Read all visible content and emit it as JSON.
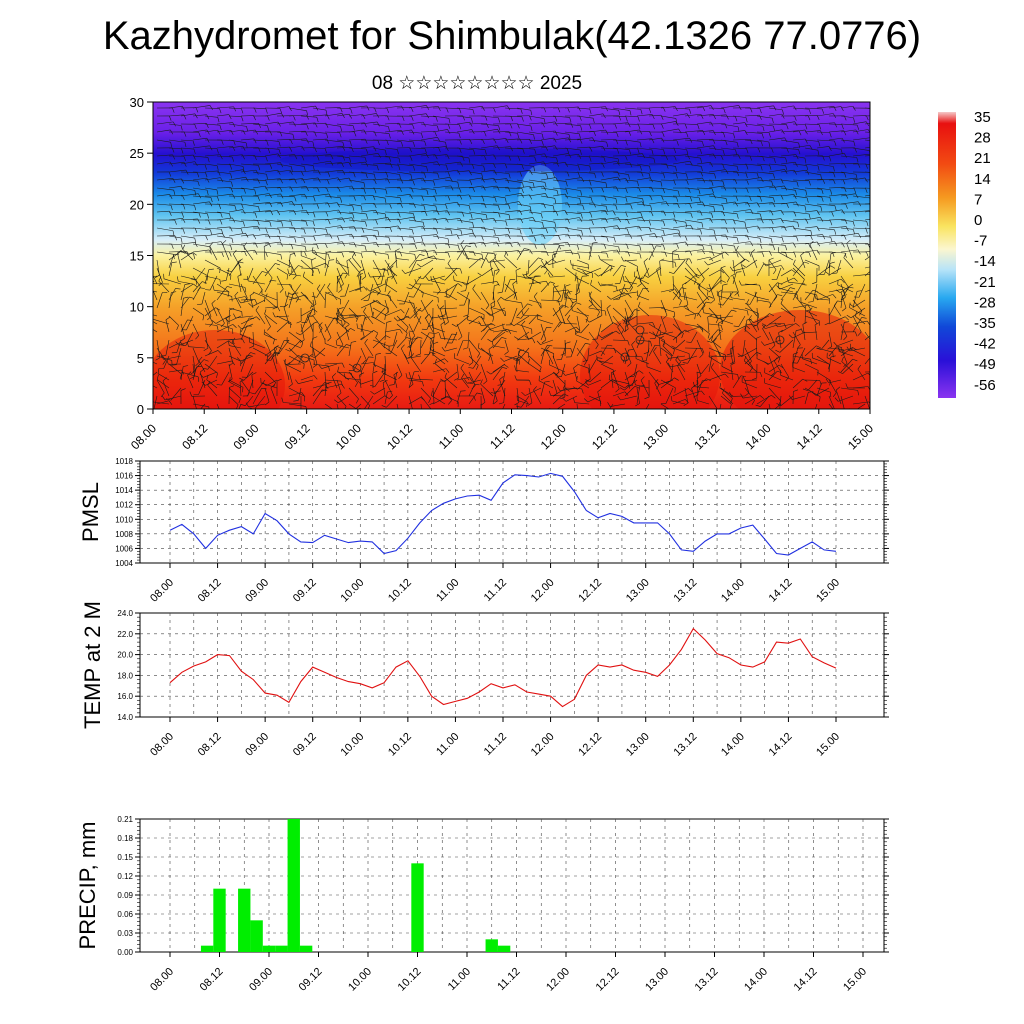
{
  "title": "Kazhydromet for Shimbulak(42.1326 77.0776)",
  "subtitle": "08 ☆☆☆☆☆☆☆☆ 2025",
  "colorbar": {
    "labels": [
      "35",
      "28",
      "21",
      "14",
      "7",
      "0",
      "-7",
      "-14",
      "-21",
      "-28",
      "-35",
      "-42",
      "-49",
      "-56"
    ]
  },
  "chart_data": [
    {
      "type": "heatmap",
      "title": "",
      "ylabel": "",
      "xlabel": "",
      "ylim": [
        0,
        30
      ],
      "y_ticks": [
        0,
        5,
        10,
        15,
        20,
        25,
        30
      ],
      "x_ticks": [
        "08.00",
        "08.12",
        "09.00",
        "09.12",
        "10.00",
        "10.12",
        "11.00",
        "11.12",
        "12.00",
        "12.12",
        "13.00",
        "13.12",
        "14.00",
        "14.12",
        "15.00"
      ],
      "color_scale": [
        "35",
        "28",
        "21",
        "14",
        "7",
        "0",
        "-7",
        "-14",
        "-21",
        "-28",
        "-35",
        "-42",
        "-49",
        "-56"
      ],
      "overlay": "wind barbs",
      "description_levels": [
        {
          "level": 0,
          "value": 28
        },
        {
          "level": 5,
          "value": 20
        },
        {
          "level": 10,
          "value": 10
        },
        {
          "level": 15,
          "value": -6
        },
        {
          "level": 20,
          "value": -28
        },
        {
          "level": 25,
          "value": -50
        },
        {
          "level": 30,
          "value": -56
        }
      ]
    },
    {
      "type": "line",
      "ylabel": "PMSL",
      "ylim": [
        1004,
        1018
      ],
      "y_ticks": [
        "1004",
        "1006",
        "1008",
        "1010",
        "1012",
        "1014",
        "1016",
        "1018"
      ],
      "x_ticks": [
        "08.00",
        "08.12",
        "09.00",
        "09.12",
        "10.00",
        "10.12",
        "11.00",
        "11.12",
        "12.00",
        "12.12",
        "13.00",
        "13.12",
        "14.00",
        "14.12",
        "15.00"
      ],
      "color": "#2030e0",
      "x_hours": [
        0,
        3,
        6,
        9,
        12,
        15,
        18,
        21,
        24,
        27,
        30,
        33,
        36,
        39,
        42,
        45,
        48,
        51,
        54,
        57,
        60,
        63,
        66,
        69,
        72,
        75,
        78,
        81,
        84,
        87,
        90,
        93,
        96,
        99,
        102,
        105,
        108,
        111,
        114,
        117,
        120,
        123,
        126,
        129,
        132,
        135,
        138,
        141,
        144,
        147,
        150,
        153,
        156,
        159,
        162,
        165,
        168
      ],
      "values": [
        1008.5,
        1009.3,
        1008.0,
        1006.0,
        1007.8,
        1008.5,
        1009.0,
        1008.0,
        1010.8,
        1009.8,
        1008.0,
        1006.9,
        1006.8,
        1007.8,
        1007.3,
        1006.8,
        1007.0,
        1006.9,
        1005.3,
        1005.7,
        1007.4,
        1009.5,
        1011.2,
        1012.2,
        1012.8,
        1013.2,
        1013.3,
        1012.6,
        1015.0,
        1016.1,
        1016.0,
        1015.8,
        1016.3,
        1015.9,
        1013.8,
        1011.2,
        1010.2,
        1010.8,
        1010.4,
        1009.5,
        1009.5,
        1009.5,
        1008.0,
        1005.8,
        1005.6,
        1007.0,
        1008.0,
        1008.0,
        1008.8,
        1009.2,
        1007.3,
        1005.3,
        1005.1,
        1006.0,
        1006.9,
        1005.8,
        1005.6
      ]
    },
    {
      "type": "line",
      "ylabel": "TEMP at 2 M",
      "ylim": [
        14,
        24
      ],
      "y_ticks": [
        "14.0",
        "16.0",
        "18.0",
        "20.0",
        "22.0",
        "24.0"
      ],
      "x_ticks": [
        "08.00",
        "08.12",
        "09.00",
        "09.12",
        "10.00",
        "10.12",
        "11.00",
        "11.12",
        "12.00",
        "12.12",
        "13.00",
        "13.12",
        "14.00",
        "14.12",
        "15.00"
      ],
      "color": "#e01010",
      "x_hours": [
        0,
        3,
        6,
        9,
        12,
        15,
        18,
        21,
        24,
        27,
        30,
        33,
        36,
        39,
        42,
        45,
        48,
        51,
        54,
        57,
        60,
        63,
        66,
        69,
        72,
        75,
        78,
        81,
        84,
        87,
        90,
        93,
        96,
        99,
        102,
        105,
        108,
        111,
        114,
        117,
        120,
        123,
        126,
        129,
        132,
        135,
        138,
        141,
        144,
        147,
        150,
        153,
        156,
        159,
        162,
        165,
        168
      ],
      "values": [
        17.3,
        18.3,
        18.9,
        19.3,
        20.0,
        19.9,
        18.4,
        17.6,
        16.3,
        16.1,
        15.4,
        17.4,
        18.8,
        18.3,
        17.8,
        17.4,
        17.2,
        16.8,
        17.3,
        18.8,
        19.4,
        17.9,
        16.0,
        15.2,
        15.5,
        15.8,
        16.4,
        17.2,
        16.8,
        17.1,
        16.4,
        16.2,
        16.0,
        15.0,
        15.7,
        18.0,
        19.0,
        18.8,
        19.0,
        18.5,
        18.3,
        17.9,
        19.0,
        20.5,
        22.5,
        21.4,
        20.1,
        19.7,
        19.0,
        18.8,
        19.3,
        21.2,
        21.1,
        21.5,
        19.8,
        19.2,
        18.7
      ]
    },
    {
      "type": "bar",
      "ylabel": "PRECIP, mm",
      "ylim": [
        0,
        0.21
      ],
      "y_ticks": [
        "0.00",
        "0.03",
        "0.06",
        "0.09",
        "0.12",
        "0.15",
        "0.18",
        "0.21"
      ],
      "x_ticks": [
        "08.00",
        "08.12",
        "09.00",
        "09.12",
        "10.00",
        "10.12",
        "11.00",
        "11.12",
        "12.00",
        "12.12",
        "13.00",
        "13.12",
        "14.00",
        "14.12",
        "15.00"
      ],
      "color": "#00ee00",
      "bars": [
        {
          "hour": 9,
          "value": 0.01
        },
        {
          "hour": 12,
          "value": 0.1
        },
        {
          "hour": 18,
          "value": 0.1
        },
        {
          "hour": 21,
          "value": 0.05
        },
        {
          "hour": 24,
          "value": 0.01
        },
        {
          "hour": 27,
          "value": 0.01
        },
        {
          "hour": 30,
          "value": 0.21
        },
        {
          "hour": 33,
          "value": 0.01
        },
        {
          "hour": 60,
          "value": 0.14
        },
        {
          "hour": 78,
          "value": 0.02
        },
        {
          "hour": 81,
          "value": 0.01
        }
      ]
    }
  ]
}
